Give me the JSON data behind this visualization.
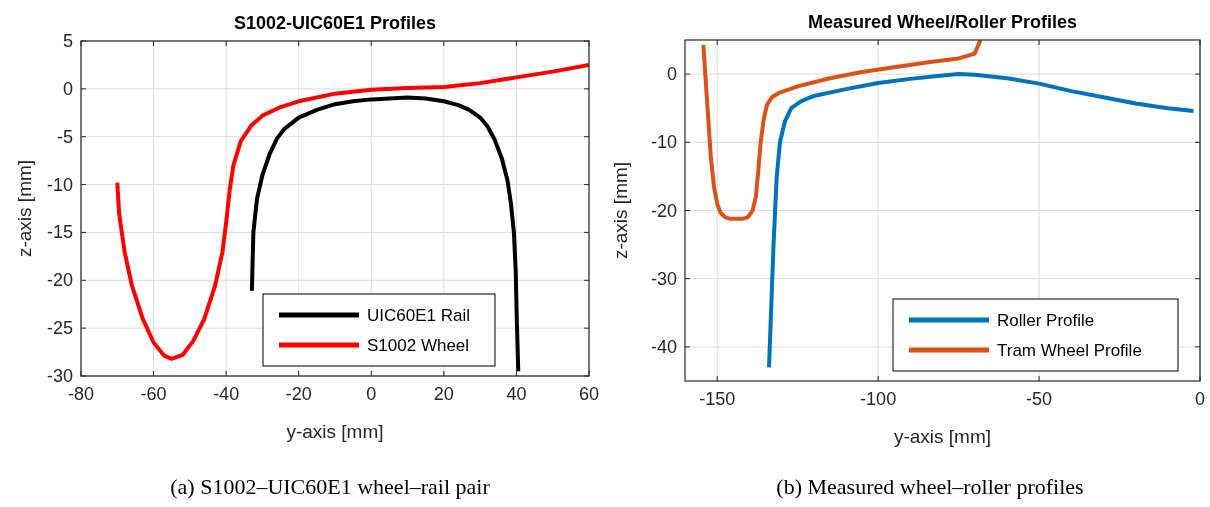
{
  "chart_data": [
    {
      "type": "line",
      "title": "S1002-UIC60E1 Profiles",
      "xlabel": "y-axis [mm]",
      "ylabel": "z-axis [mm]",
      "xlim": [
        -80,
        60
      ],
      "xticks": [
        -80,
        -60,
        -40,
        -20,
        0,
        20,
        40,
        60
      ],
      "ylim": [
        -30,
        5
      ],
      "yticks": [
        -30,
        -25,
        -20,
        -15,
        -10,
        -5,
        0,
        5
      ],
      "grid": true,
      "legend": "bottom right",
      "line_style": "solid",
      "annotations": [
        "(a) S1002–UIC60E1 wheel–rail pair"
      ],
      "series": [
        {
          "name": "UIC60E1 Rail",
          "color": "#000000",
          "x": [
            -32.9,
            -32.5,
            -31.5,
            -30,
            -28,
            -26,
            -24,
            -20,
            -15,
            -10,
            -5,
            0,
            5,
            10,
            15,
            20,
            24,
            27,
            30,
            32,
            34,
            36,
            37.5,
            38.5,
            39.3,
            39.8,
            40.1,
            40.5
          ],
          "values": [
            -21.1,
            -15,
            -11.5,
            -9,
            -6.8,
            -5.2,
            -4.2,
            -3,
            -2.2,
            -1.6,
            -1.3,
            -1.1,
            -1,
            -0.9,
            -1,
            -1.3,
            -1.7,
            -2.2,
            -3,
            -3.9,
            -5.3,
            -7.3,
            -9.5,
            -12,
            -15,
            -19,
            -24,
            -29.5
          ]
        },
        {
          "name": "S1002 Wheel",
          "color": "#ff0000",
          "x": [
            -70,
            -69.5,
            -68,
            -66,
            -63,
            -60,
            -57,
            -55,
            -52,
            -49,
            -46,
            -43,
            -41,
            -40,
            -39,
            -38,
            -36,
            -33,
            -30,
            -25,
            -20,
            -10,
            0,
            10,
            20,
            30,
            40,
            50,
            60
          ],
          "values": [
            -9.8,
            -13,
            -17,
            -20.5,
            -24,
            -26.5,
            -27.9,
            -28.2,
            -27.8,
            -26.3,
            -24,
            -20.5,
            -17,
            -14,
            -10.5,
            -8,
            -5.5,
            -3.8,
            -2.8,
            -1.9,
            -1.3,
            -0.5,
            -0.1,
            0.1,
            0.2,
            0.6,
            1.2,
            1.8,
            2.5
          ]
        }
      ]
    },
    {
      "type": "line",
      "title": "Measured Wheel/Roller Profiles",
      "xlabel": "y-axis [mm]",
      "ylabel": "z-axis [mm]",
      "xlim": [
        -160,
        0
      ],
      "xticks": [
        -150,
        -100,
        -50,
        0
      ],
      "ylim": [
        -45,
        5
      ],
      "yticks": [
        -40,
        -30,
        -20,
        -10,
        0
      ],
      "grid": true,
      "legend": "bottom right",
      "line_style": "solid",
      "annotations": [
        "(b) Measured wheel–roller profiles"
      ],
      "series": [
        {
          "name": "Roller Profile",
          "color": "#0072bd",
          "x": [
            -133.9,
            -132.5,
            -131.5,
            -130.5,
            -129,
            -127,
            -124,
            -120,
            -110,
            -100,
            -90,
            -80,
            -75,
            -70,
            -60,
            -50,
            -40,
            -30,
            -20,
            -10,
            -2
          ],
          "values": [
            -43,
            -25,
            -15,
            -10,
            -7,
            -5,
            -4,
            -3.2,
            -2.2,
            -1.3,
            -0.7,
            -0.2,
            0,
            -0.1,
            -0.6,
            -1.4,
            -2.5,
            -3.4,
            -4.3,
            -5,
            -5.4
          ]
        },
        {
          "name": "Tram Wheel Profile",
          "color": "#d95319",
          "x": [
            -154.3,
            -153,
            -152,
            -151,
            -150,
            -149,
            -147.5,
            -146,
            -142,
            -140.5,
            -139,
            -138,
            -137.2,
            -136.5,
            -135.5,
            -134.5,
            -133,
            -131,
            -125,
            -115,
            -105,
            -95,
            -85,
            -75,
            -70,
            -68.2
          ],
          "values": [
            4.3,
            -5,
            -12,
            -16.5,
            -19,
            -20.3,
            -21,
            -21.2,
            -21.2,
            -21,
            -20,
            -18,
            -14,
            -10,
            -6.5,
            -4.5,
            -3.4,
            -2.8,
            -1.8,
            -0.6,
            0.3,
            1,
            1.7,
            2.3,
            3,
            5
          ]
        }
      ]
    }
  ]
}
